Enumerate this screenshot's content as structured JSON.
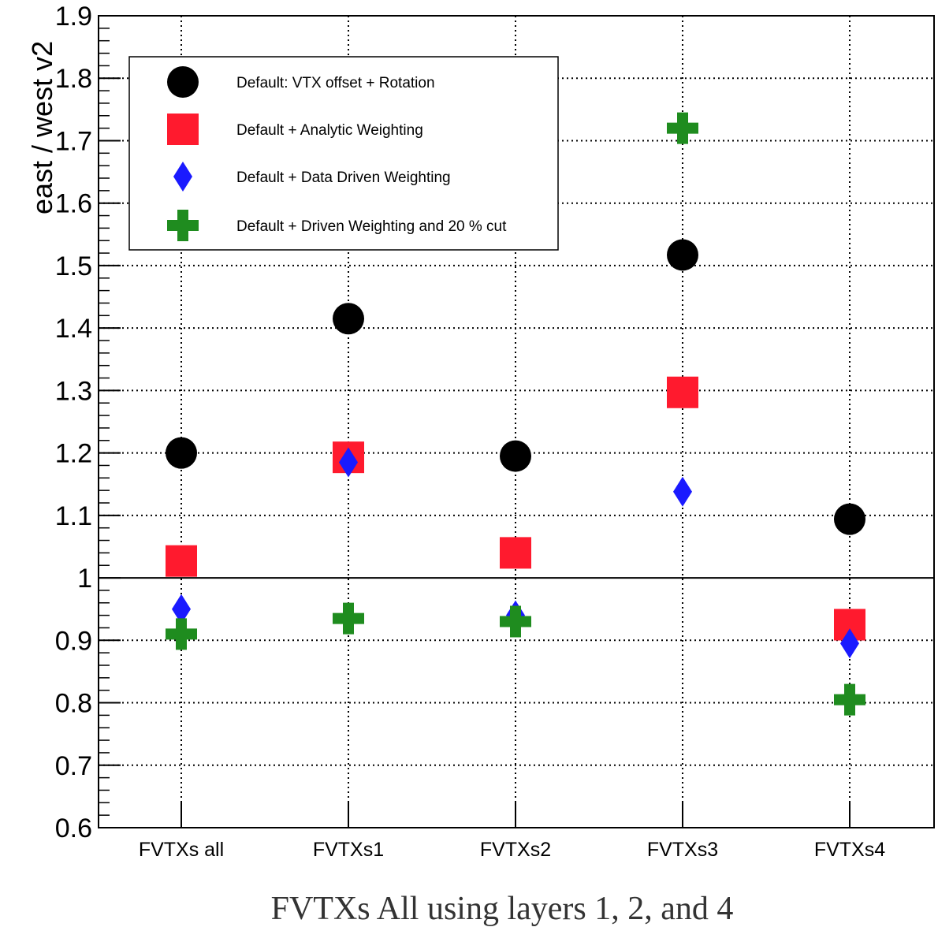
{
  "chart_data": {
    "type": "scatter",
    "title": "",
    "xlabel": "",
    "ylabel": "east / west v2",
    "ylim": [
      0.6,
      1.9
    ],
    "yticks": [
      "0.6",
      "0.7",
      "0.8",
      "0.9",
      "1",
      "1.1",
      "1.2",
      "1.3",
      "1.4",
      "1.5",
      "1.6",
      "1.7",
      "1.8",
      "1.9"
    ],
    "categories": [
      "FVTXs all",
      "FVTXs1",
      "FVTXs2",
      "FVTXs3",
      "FVTXs4"
    ],
    "reference_line": 1.0,
    "grid": true,
    "legend_position": "top-left",
    "series": [
      {
        "name": "Default: VTX offset + Rotation",
        "marker": "circle",
        "color": "#000000",
        "values": [
          1.2,
          1.415,
          1.195,
          1.517,
          1.094
        ]
      },
      {
        "name": "Default + Analytic Weighting",
        "marker": "square",
        "color": "#ff1a2e",
        "values": [
          1.027,
          1.193,
          1.04,
          1.297,
          0.925
        ]
      },
      {
        "name": "Default + Data Driven Weighting",
        "marker": "diamond",
        "color": "#1a1aff",
        "values": [
          0.95,
          1.185,
          0.94,
          1.138,
          0.895
        ]
      },
      {
        "name": "Default + Driven Weighting and 20 % cut",
        "marker": "cross",
        "color": "#1f8c1f",
        "values": [
          0.91,
          0.935,
          0.93,
          1.72,
          0.805
        ]
      }
    ]
  },
  "caption": "FVTXs All using layers 1, 2, and 4"
}
